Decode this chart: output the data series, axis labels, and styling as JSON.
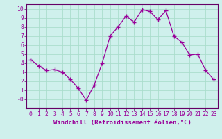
{
  "x": [
    0,
    1,
    2,
    3,
    4,
    5,
    6,
    7,
    8,
    9,
    10,
    11,
    12,
    13,
    14,
    15,
    16,
    17,
    18,
    19,
    20,
    21,
    22,
    23
  ],
  "y": [
    4.4,
    3.7,
    3.2,
    3.3,
    3.0,
    2.2,
    1.2,
    -0.1,
    1.6,
    4.0,
    7.0,
    8.0,
    9.2,
    8.5,
    9.9,
    9.7,
    8.8,
    9.8,
    7.0,
    6.3,
    4.9,
    5.0,
    3.2,
    2.2
  ],
  "line_color": "#990099",
  "marker": "+",
  "markersize": 4,
  "linewidth": 0.9,
  "bg_color": "#cff0ec",
  "grid_color": "#aaddcc",
  "xlabel": "Windchill (Refroidissement éolien,°C)",
  "xlabel_fontsize": 6.5,
  "tick_fontsize": 5.8,
  "ylim": [
    -1,
    10.5
  ],
  "xlim": [
    -0.5,
    23.5
  ],
  "yticks": [
    0,
    1,
    2,
    3,
    4,
    5,
    6,
    7,
    8,
    9,
    10
  ],
  "ytick_labels": [
    "-0",
    "1",
    "2",
    "3",
    "4",
    "5",
    "6",
    "7",
    "8",
    "9",
    "10"
  ],
  "xticks": [
    0,
    1,
    2,
    3,
    4,
    5,
    6,
    7,
    8,
    9,
    10,
    11,
    12,
    13,
    14,
    15,
    16,
    17,
    18,
    19,
    20,
    21,
    22,
    23
  ],
  "spine_color": "#660066",
  "separator_color": "#660066"
}
